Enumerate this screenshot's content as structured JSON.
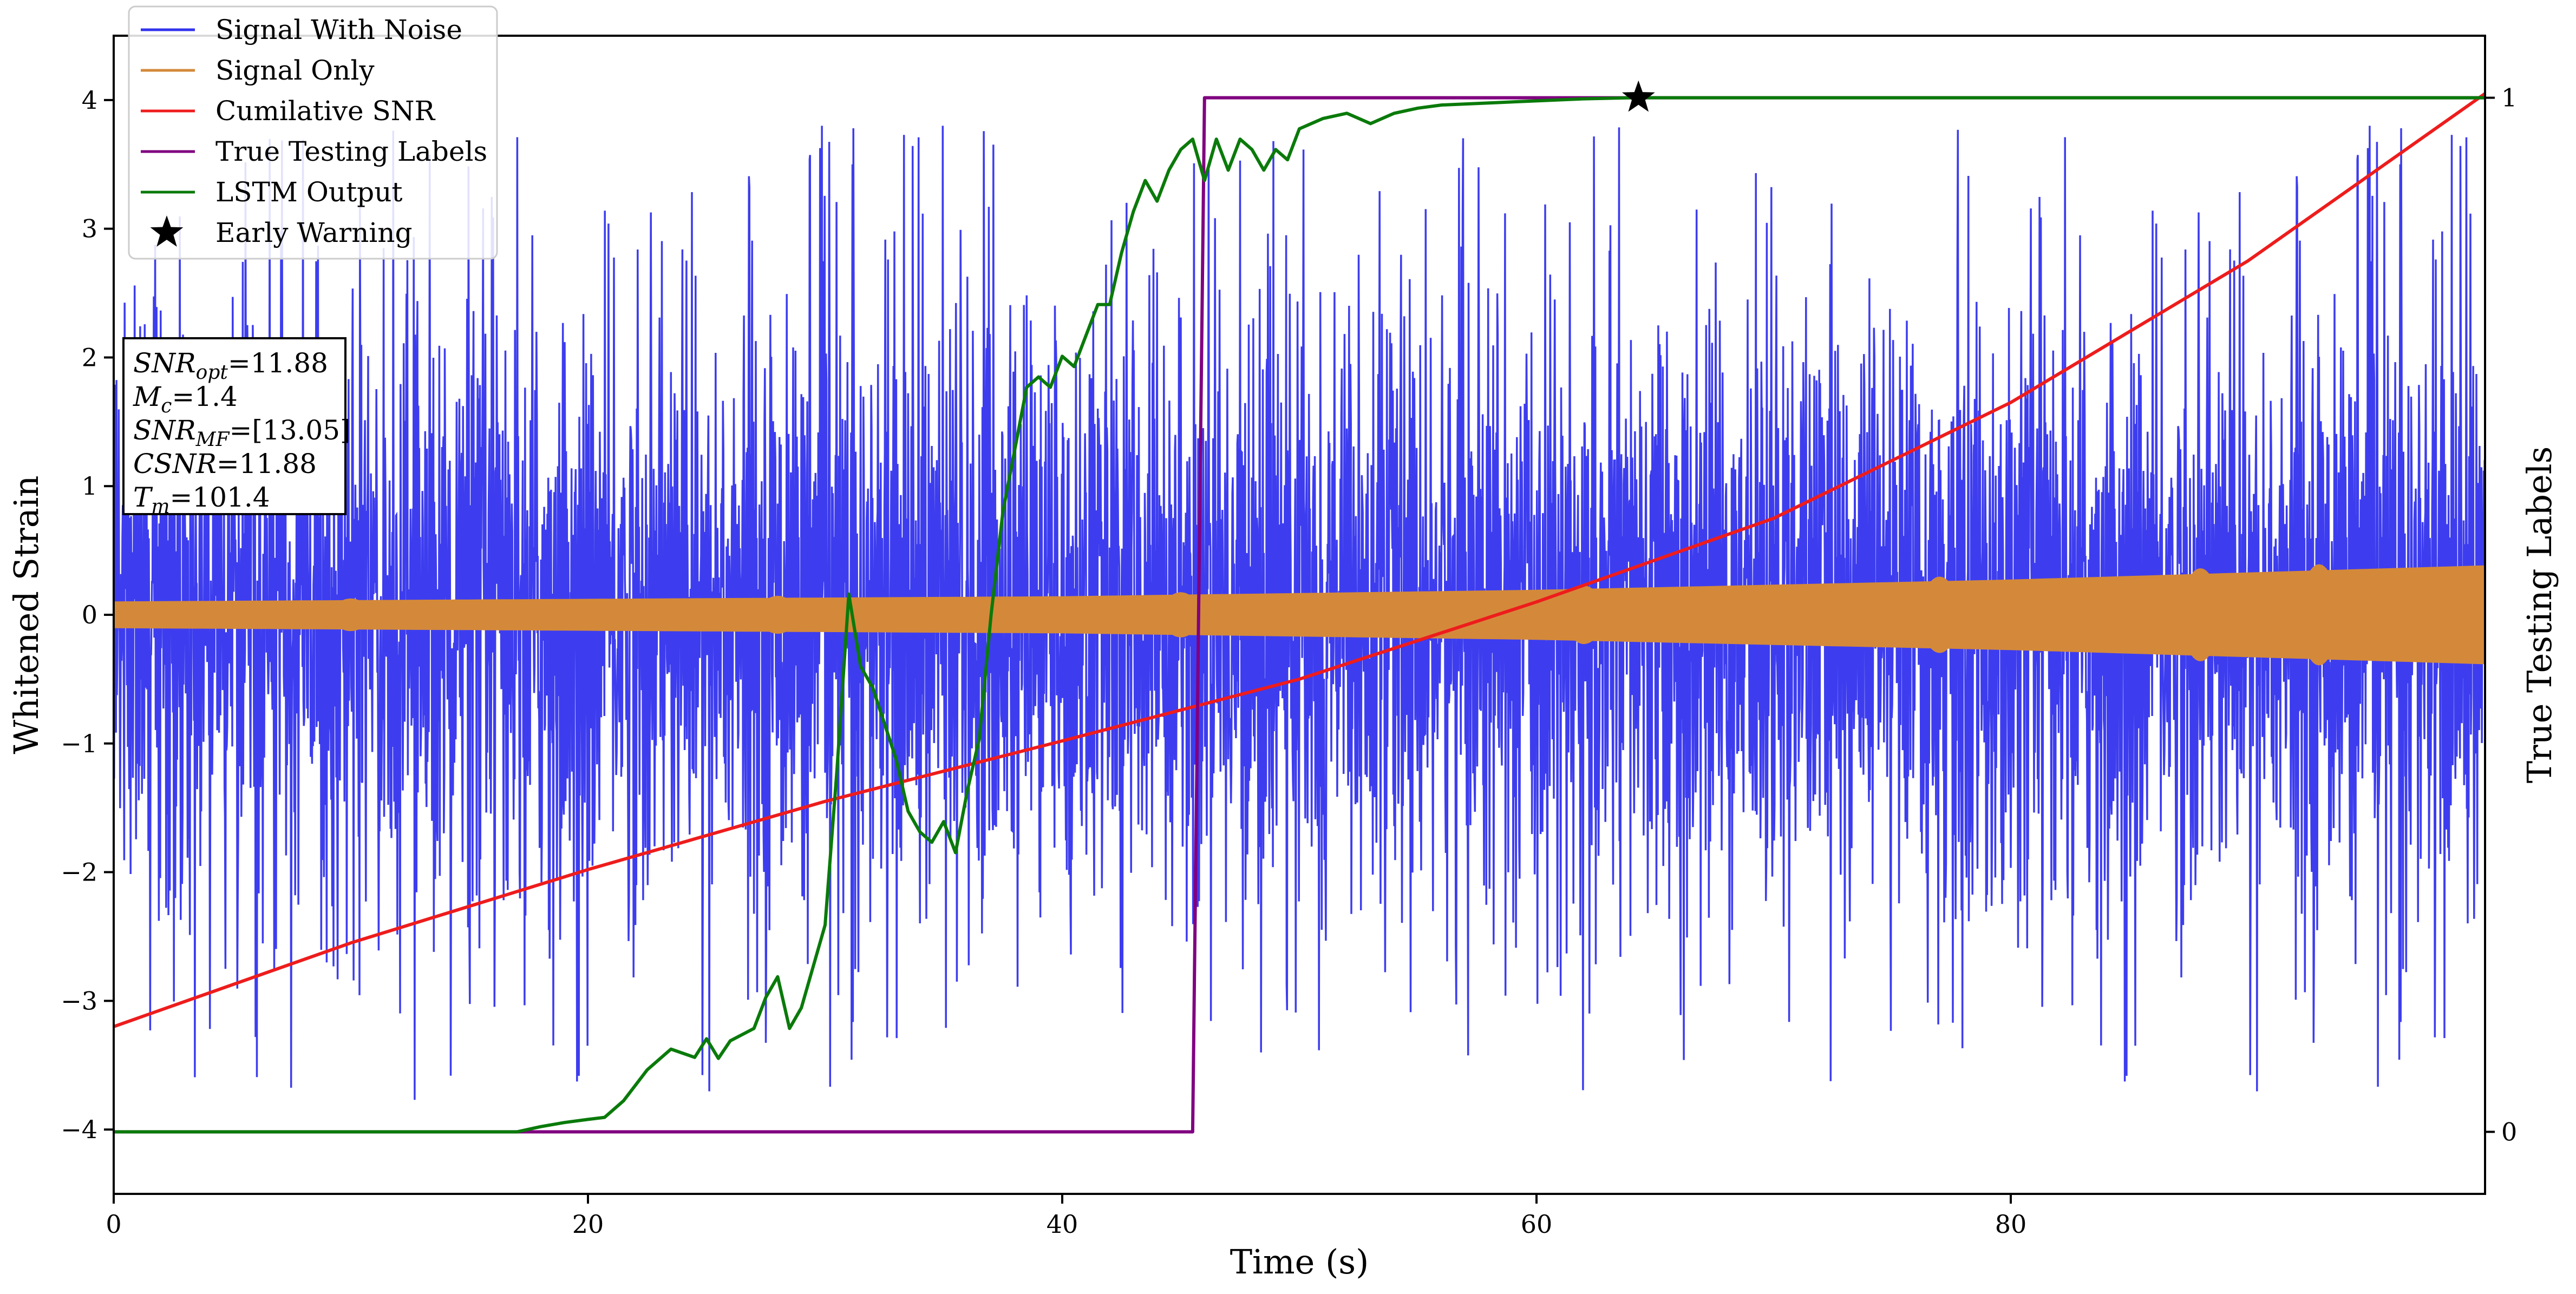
{
  "chart_data": {
    "type": "line",
    "xlabel": "Time (s)",
    "ylabel": "Whitened Strain",
    "y2label": "True Testing Labels",
    "xlim": [
      0,
      100
    ],
    "ylim": [
      -4.5,
      4.5
    ],
    "y2lim": [
      -0.06,
      1.06
    ],
    "xticks": [
      0,
      20,
      40,
      60,
      80
    ],
    "xtick_labels": [
      "0",
      "20",
      "40",
      "60",
      "80"
    ],
    "yticks": [
      -4,
      -3,
      -2,
      -1,
      0,
      1,
      2,
      3,
      4
    ],
    "ytick_labels": [
      "−4",
      "−3",
      "−2",
      "−1",
      "0",
      "1",
      "2",
      "3",
      "4"
    ],
    "y2ticks": [
      0,
      1
    ],
    "y2tick_labels": [
      "0",
      "1"
    ],
    "grid": false,
    "legend_position": "top-left",
    "colors": {
      "noise": "#3333ee",
      "signal": "#d4893a",
      "cumsnr": "#ee1c1c",
      "labels": "#800080",
      "lstm": "#0a7a0a",
      "marker": "#000000"
    },
    "legend": [
      {
        "label": "Signal With Noise",
        "kind": "line",
        "color_key": "noise"
      },
      {
        "label": "Signal Only",
        "kind": "line",
        "color_key": "signal"
      },
      {
        "label": "Cumilative SNR",
        "kind": "line",
        "color_key": "cumsnr"
      },
      {
        "label": "True Testing Labels",
        "kind": "line",
        "color_key": "labels"
      },
      {
        "label": "LSTM Output",
        "kind": "line",
        "color_key": "lstm"
      },
      {
        "label": "Early Warning",
        "kind": "star",
        "color_key": "marker"
      }
    ],
    "info_box": {
      "lines": [
        {
          "main": "SNR",
          "sub": "opt",
          "rest": "=11.88"
        },
        {
          "main": "M",
          "sub": "c",
          "rest": "=1.4"
        },
        {
          "main": "SNR",
          "sub": "MF",
          "rest": "=[13.05]"
        },
        {
          "main": "CSNR",
          "sub": "",
          "rest": "=11.88"
        },
        {
          "main": "T",
          "sub": "m",
          "rest": "=101.4"
        }
      ]
    },
    "series": [
      {
        "name": "Signal With Noise",
        "axis": "left",
        "style": "noise",
        "envelope_typical": 1.3,
        "envelope_peak": 3.8
      },
      {
        "name": "Signal Only",
        "axis": "left",
        "style": "band",
        "x": [
          0,
          20,
          40,
          60,
          80,
          100
        ],
        "amplitude": [
          0.1,
          0.12,
          0.14,
          0.19,
          0.27,
          0.38
        ]
      },
      {
        "name": "Cumilative SNR",
        "axis": "left",
        "x": [
          0,
          10,
          20,
          30,
          40,
          50,
          60,
          70,
          80,
          90,
          100
        ],
        "y": [
          -3.2,
          -2.55,
          -1.98,
          -1.45,
          -0.98,
          -0.5,
          0.1,
          0.75,
          1.65,
          2.75,
          4.05
        ]
      },
      {
        "name": "True Testing Labels",
        "axis": "right",
        "x": [
          0,
          45.5,
          46.0,
          100
        ],
        "y": [
          0,
          0,
          1,
          1
        ]
      },
      {
        "name": "LSTM Output",
        "axis": "right",
        "x": [
          0,
          17,
          18,
          19,
          20,
          20.7,
          21.5,
          22.5,
          23.5,
          24.5,
          25,
          25.5,
          26,
          27,
          27.5,
          28,
          28.5,
          29,
          29.5,
          30,
          30.5,
          31,
          31.5,
          32,
          33,
          33.5,
          34,
          34.5,
          35,
          35.5,
          36,
          36.5,
          37,
          37.5,
          38,
          38.5,
          39,
          39.5,
          40,
          40.5,
          41,
          41.5,
          42,
          42.5,
          43,
          43.5,
          44,
          44.5,
          45,
          45.5,
          46,
          46.5,
          47,
          47.5,
          48,
          48.5,
          49,
          49.5,
          50,
          51,
          52,
          53,
          54,
          55,
          56,
          58,
          60,
          62,
          64,
          65,
          66,
          68,
          70,
          100
        ],
        "y": [
          0,
          0,
          0.005,
          0.009,
          0.012,
          0.014,
          0.03,
          0.06,
          0.08,
          0.072,
          0.09,
          0.071,
          0.088,
          0.1,
          0.13,
          0.15,
          0.1,
          0.12,
          0.16,
          0.2,
          0.35,
          0.52,
          0.45,
          0.43,
          0.36,
          0.31,
          0.29,
          0.28,
          0.3,
          0.27,
          0.33,
          0.38,
          0.5,
          0.6,
          0.66,
          0.72,
          0.73,
          0.72,
          0.75,
          0.74,
          0.77,
          0.8,
          0.8,
          0.85,
          0.89,
          0.92,
          0.9,
          0.93,
          0.95,
          0.96,
          0.92,
          0.96,
          0.93,
          0.96,
          0.95,
          0.93,
          0.95,
          0.94,
          0.97,
          0.98,
          0.985,
          0.975,
          0.985,
          0.99,
          0.993,
          0.995,
          0.997,
          0.999,
          1.0,
          1.0,
          1.0,
          1.0,
          1.0,
          1.0
        ]
      },
      {
        "name": "Early Warning",
        "axis": "right",
        "style": "marker",
        "x": [
          64.3
        ],
        "y": [
          1.0
        ]
      }
    ]
  }
}
